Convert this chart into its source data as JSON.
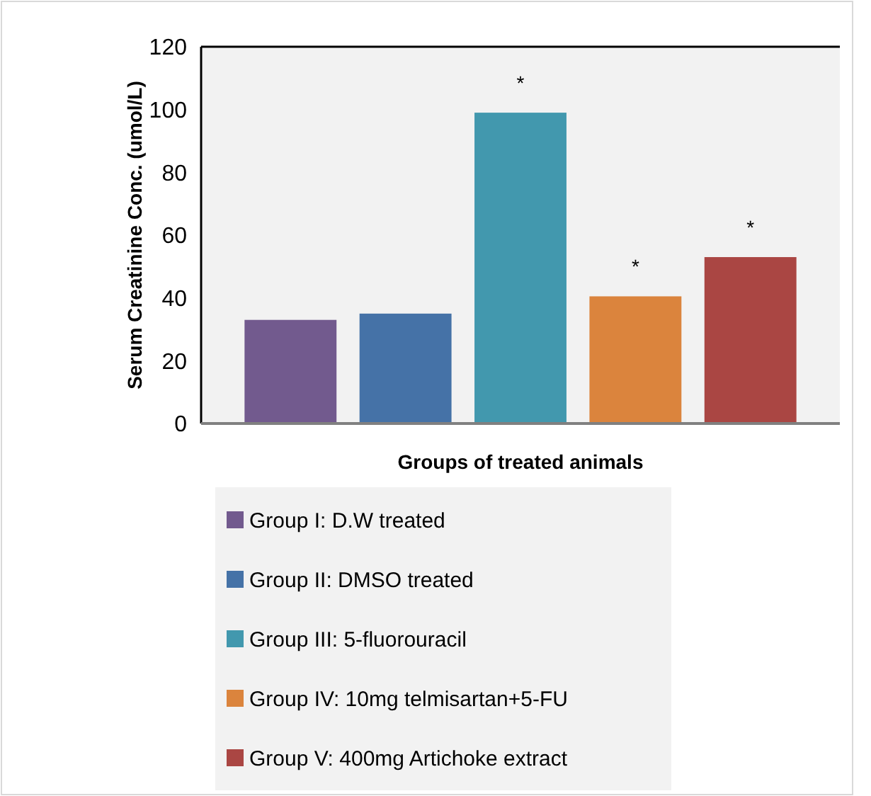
{
  "chart_data": {
    "type": "bar",
    "xlabel": "Groups of treated animals",
    "ylabel": "Serum Creatinine  Conc. (umol/L)",
    "categories": [
      null
    ],
    "series": [
      {
        "name": "Group I: D.W treated",
        "color": "#725a8e",
        "values": [
          33
        ]
      },
      {
        "name": "Group II: DMSO treated",
        "color": "#4572a7",
        "values": [
          35
        ]
      },
      {
        "name": "Group III: 5-fluorouracil",
        "color": "#4298ae",
        "values": [
          99
        ],
        "value_labels": [
          "*"
        ]
      },
      {
        "name": "Group IV: 10mg telmisartan+5-FU",
        "color": "#db843d",
        "values": [
          40.5
        ],
        "value_labels": [
          "*"
        ]
      },
      {
        "name": "Group V: 400mg Artichoke extract",
        "color": "#aa4643",
        "values": [
          53
        ],
        "value_labels": [
          "*"
        ]
      }
    ],
    "ylim": [
      0,
      120
    ],
    "yticks": [
      0,
      20,
      40,
      60,
      80,
      100,
      120
    ],
    "grid": false,
    "legend": "bottom"
  }
}
